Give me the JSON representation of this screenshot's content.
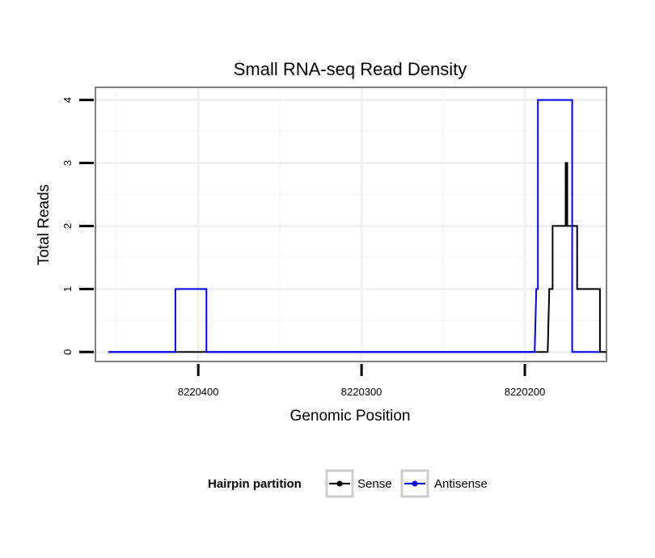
{
  "chart_data": {
    "type": "line",
    "title": "Small RNA-seq Read Density",
    "xlabel": "Genomic Position",
    "ylabel": "Total Reads",
    "x_reversed": true,
    "xlim": [
      8220463,
      8220150
    ],
    "ylim": [
      -0.15,
      4.2
    ],
    "x_ticks": [
      8220400,
      8220300,
      8220200
    ],
    "x_tick_labels": [
      "8220400",
      "8220300",
      "8220200"
    ],
    "y_ticks": [
      0,
      1,
      2,
      3,
      4
    ],
    "y_tick_labels": [
      "0",
      "1",
      "2",
      "3",
      "4"
    ],
    "grid": true,
    "legend": {
      "title": "Hairpin partition",
      "position": "bottom"
    },
    "series": [
      {
        "name": "Sense",
        "color": "#000000",
        "x": [
          8220455,
          8220186,
          8220185,
          8220184,
          8220183,
          8220183,
          8220176,
          8220175,
          8220175,
          8220174,
          8220174,
          8220169,
          8220168,
          8220168,
          8220154,
          8220154,
          8220150
        ],
        "y": [
          0,
          0,
          1,
          1,
          1,
          2,
          2,
          2,
          3,
          3,
          2,
          2,
          2,
          1,
          1,
          0,
          0
        ]
      },
      {
        "name": "Antisense",
        "color": "#0000ff",
        "x": [
          8220455,
          8220414,
          8220414,
          8220395,
          8220395,
          8220194,
          8220193,
          8220192,
          8220192,
          8220171,
          8220171,
          8220154
        ],
        "y": [
          0,
          0,
          1,
          1,
          0,
          0,
          1,
          1,
          4,
          4,
          0,
          0
        ]
      }
    ]
  }
}
